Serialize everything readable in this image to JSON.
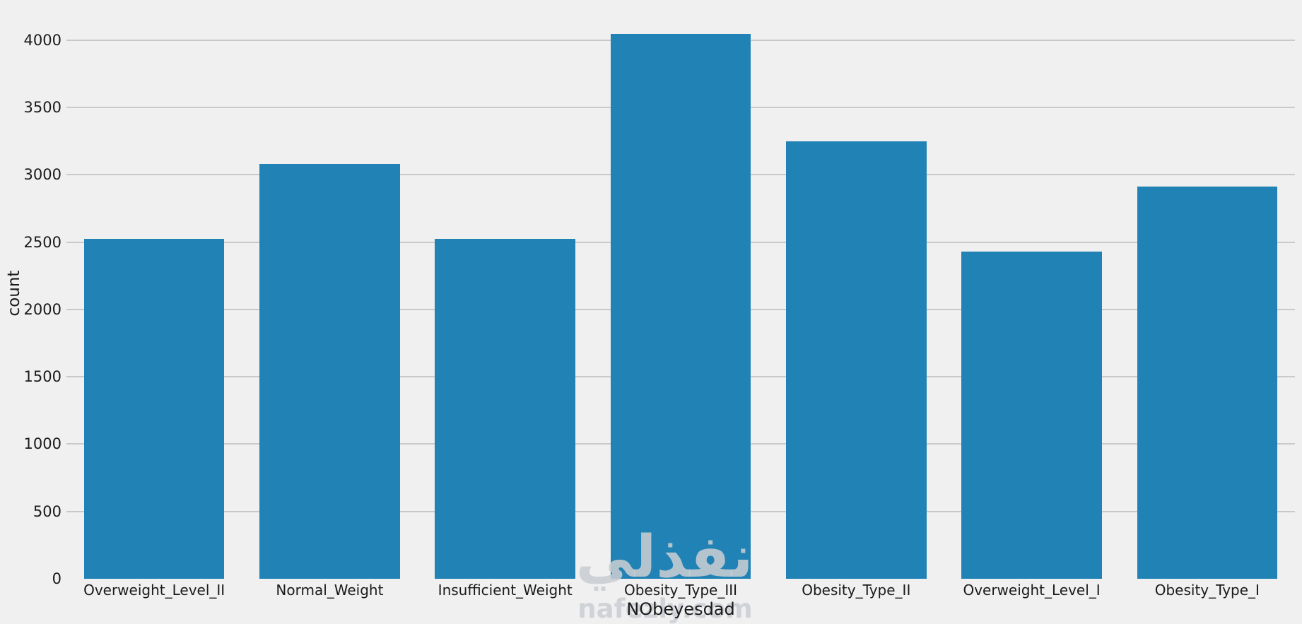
{
  "chart_data": {
    "type": "bar",
    "title": "",
    "xlabel": "NObeyesdad",
    "ylabel": "count",
    "categories": [
      "Overweight_Level_II",
      "Normal_Weight",
      "Insufficient_Weight",
      "Obesity_Type_III",
      "Obesity_Type_II",
      "Overweight_Level_I",
      "Obesity_Type_I"
    ],
    "values": [
      2522,
      3082,
      2523,
      4046,
      3248,
      2427,
      2910
    ],
    "yticks": [
      0,
      500,
      1000,
      1500,
      2000,
      2500,
      3000,
      3500,
      4000
    ],
    "ylim": [
      0,
      4250
    ],
    "grid": true,
    "legend": false,
    "bar_color": "#2183b5",
    "background_color": "#f0f0f0",
    "grid_color": "#c9c9c9",
    "text_color": "#1a1a1a"
  },
  "watermark": {
    "logo_text": "نفذلي",
    "site_text": "nafezly.com"
  }
}
